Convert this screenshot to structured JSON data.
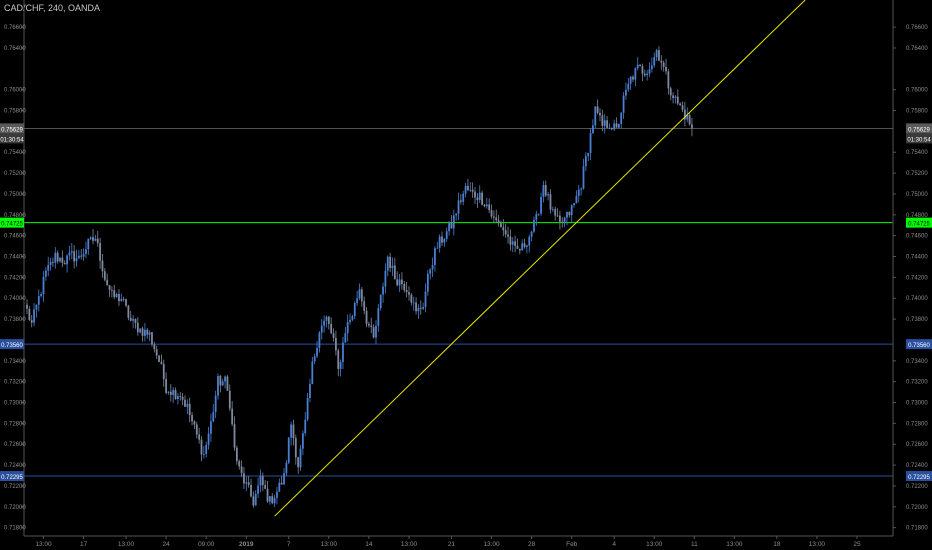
{
  "header": {
    "symbol_title": "CAD/CHF, 240, OANDA"
  },
  "colors": {
    "background": "#000000",
    "axis_text": "#8c8c8c",
    "axis_line": "#555555",
    "candle_up": "#4a7fd4",
    "candle_down": "#7f8a9e",
    "trendline": "#e6e600",
    "level_green": "#00ff00",
    "level_blue": "#2a4f9e",
    "current_price_line": "#6e6e6e",
    "label_text_dark": "#000000",
    "label_text_light": "#ffffff"
  },
  "chart_data": {
    "type": "candlestick",
    "title": "CAD/CHF, 240, OANDA",
    "y_axis": {
      "position": "right",
      "ylim": [
        0.7172,
        0.7686
      ],
      "ticks": [
        "0.76600",
        "0.76400",
        "0.76000",
        "0.75800",
        "0.75400",
        "0.75200",
        "0.75000",
        "0.74800",
        "0.74600",
        "0.74400",
        "0.74200",
        "0.74000",
        "0.73800",
        "0.73400",
        "0.73200",
        "0.73000",
        "0.72800",
        "0.72600",
        "0.72400",
        "0.72200",
        "0.72000",
        "0.71800"
      ],
      "tick_values": [
        0.766,
        0.764,
        0.76,
        0.758,
        0.754,
        0.752,
        0.75,
        0.748,
        0.746,
        0.744,
        0.742,
        0.74,
        0.738,
        0.734,
        0.732,
        0.73,
        0.728,
        0.726,
        0.724,
        0.722,
        0.72,
        0.718
      ]
    },
    "x_axis": {
      "ticks": [
        "13:00",
        "17",
        "13:00",
        "24",
        "09:00",
        "2019",
        "7",
        "13:00",
        "14",
        "13:00",
        "21",
        "13:00",
        "28",
        "Feb",
        "4",
        "13:00",
        "11",
        "13:00",
        "18",
        "13:00",
        "25"
      ],
      "tick_bars": [
        7,
        24,
        42,
        59,
        76,
        93,
        111,
        128,
        145,
        162,
        180,
        197,
        214,
        231,
        249,
        266,
        283,
        300,
        318,
        335,
        352
      ]
    },
    "grid": false,
    "bars_count": 290,
    "price_path": [
      {
        "bar": 0,
        "price": 0.7388
      },
      {
        "bar": 2,
        "price": 0.7375
      },
      {
        "bar": 5,
        "price": 0.74
      },
      {
        "bar": 8,
        "price": 0.7424
      },
      {
        "bar": 12,
        "price": 0.744
      },
      {
        "bar": 16,
        "price": 0.7436
      },
      {
        "bar": 19,
        "price": 0.7441
      },
      {
        "bar": 22,
        "price": 0.7438
      },
      {
        "bar": 26,
        "price": 0.7452
      },
      {
        "bar": 29,
        "price": 0.7458
      },
      {
        "bar": 31,
        "price": 0.744
      },
      {
        "bar": 33,
        "price": 0.742
      },
      {
        "bar": 36,
        "price": 0.7402
      },
      {
        "bar": 40,
        "price": 0.74
      },
      {
        "bar": 44,
        "price": 0.7378
      },
      {
        "bar": 48,
        "price": 0.737
      },
      {
        "bar": 52,
        "price": 0.7365
      },
      {
        "bar": 56,
        "price": 0.734
      },
      {
        "bar": 59,
        "price": 0.7315
      },
      {
        "bar": 62,
        "price": 0.731
      },
      {
        "bar": 65,
        "price": 0.7308
      },
      {
        "bar": 68,
        "price": 0.7295
      },
      {
        "bar": 72,
        "price": 0.7268
      },
      {
        "bar": 75,
        "price": 0.725
      },
      {
        "bar": 78,
        "price": 0.728
      },
      {
        "bar": 81,
        "price": 0.732
      },
      {
        "bar": 84,
        "price": 0.732
      },
      {
        "bar": 86,
        "price": 0.73
      },
      {
        "bar": 88,
        "price": 0.7255
      },
      {
        "bar": 90,
        "price": 0.7235
      },
      {
        "bar": 93,
        "price": 0.722
      },
      {
        "bar": 96,
        "price": 0.7205
      },
      {
        "bar": 99,
        "price": 0.7225
      },
      {
        "bar": 101,
        "price": 0.7215
      },
      {
        "bar": 103,
        "price": 0.7205
      },
      {
        "bar": 106,
        "price": 0.7215
      },
      {
        "bar": 109,
        "price": 0.7228
      },
      {
        "bar": 112,
        "price": 0.728
      },
      {
        "bar": 115,
        "price": 0.724
      },
      {
        "bar": 118,
        "price": 0.728
      },
      {
        "bar": 121,
        "price": 0.7335
      },
      {
        "bar": 124,
        "price": 0.737
      },
      {
        "bar": 127,
        "price": 0.738
      },
      {
        "bar": 130,
        "price": 0.736
      },
      {
        "bar": 132,
        "price": 0.733
      },
      {
        "bar": 135,
        "price": 0.737
      },
      {
        "bar": 138,
        "price": 0.7385
      },
      {
        "bar": 141,
        "price": 0.741
      },
      {
        "bar": 144,
        "price": 0.738
      },
      {
        "bar": 147,
        "price": 0.736
      },
      {
        "bar": 150,
        "price": 0.74
      },
      {
        "bar": 153,
        "price": 0.744
      },
      {
        "bar": 156,
        "price": 0.742
      },
      {
        "bar": 159,
        "price": 0.7415
      },
      {
        "bar": 162,
        "price": 0.7408
      },
      {
        "bar": 165,
        "price": 0.7385
      },
      {
        "bar": 168,
        "price": 0.7395
      },
      {
        "bar": 171,
        "price": 0.743
      },
      {
        "bar": 174,
        "price": 0.745
      },
      {
        "bar": 177,
        "price": 0.746
      },
      {
        "bar": 180,
        "price": 0.747
      },
      {
        "bar": 183,
        "price": 0.749
      },
      {
        "bar": 186,
        "price": 0.7505
      },
      {
        "bar": 189,
        "price": 0.75
      },
      {
        "bar": 192,
        "price": 0.7498
      },
      {
        "bar": 195,
        "price": 0.749
      },
      {
        "bar": 198,
        "price": 0.7475
      },
      {
        "bar": 201,
        "price": 0.747
      },
      {
        "bar": 204,
        "price": 0.7458
      },
      {
        "bar": 207,
        "price": 0.7445
      },
      {
        "bar": 210,
        "price": 0.7448
      },
      {
        "bar": 213,
        "price": 0.746
      },
      {
        "bar": 216,
        "price": 0.7475
      },
      {
        "bar": 219,
        "price": 0.751
      },
      {
        "bar": 221,
        "price": 0.7495
      },
      {
        "bar": 223,
        "price": 0.748
      },
      {
        "bar": 226,
        "price": 0.747
      },
      {
        "bar": 229,
        "price": 0.7478
      },
      {
        "bar": 232,
        "price": 0.749
      },
      {
        "bar": 235,
        "price": 0.751
      },
      {
        "bar": 238,
        "price": 0.7545
      },
      {
        "bar": 241,
        "price": 0.758
      },
      {
        "bar": 244,
        "price": 0.7565
      },
      {
        "bar": 247,
        "price": 0.7568
      },
      {
        "bar": 250,
        "price": 0.756
      },
      {
        "bar": 253,
        "price": 0.759
      },
      {
        "bar": 256,
        "price": 0.761
      },
      {
        "bar": 259,
        "price": 0.762
      },
      {
        "bar": 262,
        "price": 0.7618
      },
      {
        "bar": 265,
        "price": 0.7625
      },
      {
        "bar": 267,
        "price": 0.7638
      },
      {
        "bar": 269,
        "price": 0.7628
      },
      {
        "bar": 272,
        "price": 0.7605
      },
      {
        "bar": 275,
        "price": 0.759
      },
      {
        "bar": 278,
        "price": 0.758
      },
      {
        "bar": 280,
        "price": 0.7572
      },
      {
        "bar": 282,
        "price": 0.7563
      }
    ],
    "last_bar": 282,
    "horizontal_levels": [
      {
        "price": 0.74725,
        "label": "0.74725",
        "style": "green"
      },
      {
        "price": 0.7356,
        "label": "0.73560",
        "style": "blue"
      },
      {
        "price": 0.72295,
        "label": "0.72295",
        "style": "blue"
      }
    ],
    "current_price": {
      "price": 0.75629,
      "label": "0.75629",
      "countdown": "01:30:54"
    },
    "trendline": {
      "start": {
        "bar": 105,
        "price": 0.7191
      },
      "end": {
        "bar": 330,
        "price": 0.7686
      }
    }
  }
}
